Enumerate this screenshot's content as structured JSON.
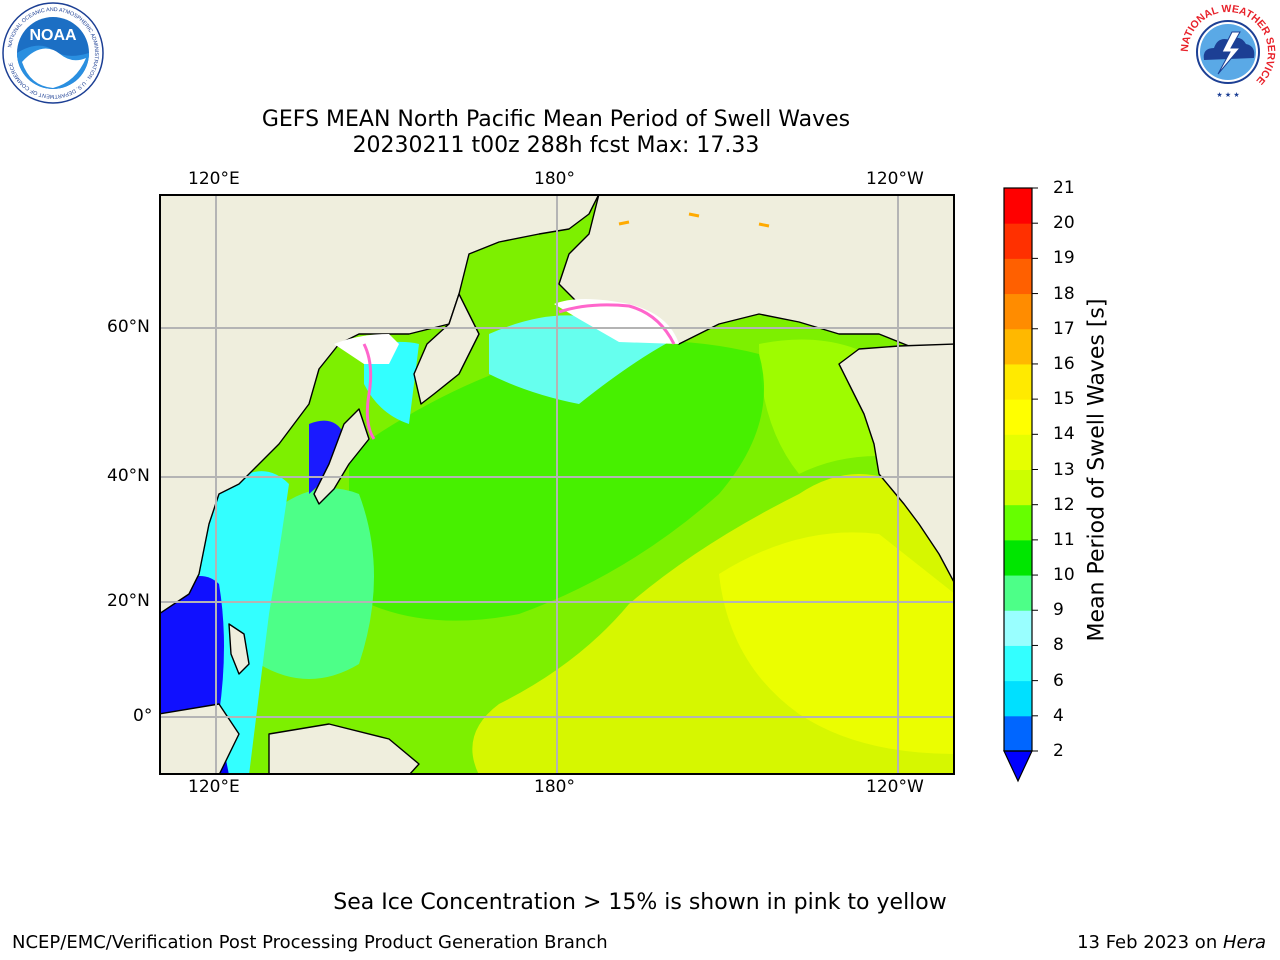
{
  "logos": {
    "noaa": {
      "name": "NOAA",
      "ring_text": "NATIONAL OCEANIC AND ATMOSPHERIC ADMINISTRATION · U.S. DEPARTMENT OF COMMERCE"
    },
    "nws": {
      "ring_text": "NATIONAL WEATHER SERVICE"
    }
  },
  "title": {
    "line1": "GEFS MEAN North Pacific Mean Period of Swell Waves",
    "line2": "20230211 t00z 288h fcst   Max: 17.33"
  },
  "map": {
    "top_lon_labels": [
      "120°E",
      "180°",
      "120°W"
    ],
    "bottom_lon_labels": [
      "120°E",
      "180°",
      "120°W"
    ],
    "lat_labels": [
      "60°N",
      "40°N",
      "20°N",
      "0°"
    ],
    "colors": {
      "land": "#efeedd",
      "ocean_base": "#7df000",
      "gridline": "#b4b4b4",
      "coast": "#000000",
      "ice_edge": "#ff66cc"
    }
  },
  "colorbar": {
    "label": "Mean Period of Swell Waves [s]",
    "levels": [
      "2",
      "4",
      "6",
      "8",
      "9",
      "10",
      "11",
      "12",
      "13",
      "14",
      "15",
      "16",
      "17",
      "18",
      "19",
      "20",
      "21"
    ],
    "colors": [
      "#0066ff",
      "#00e0ff",
      "#33ffff",
      "#99ffff",
      "#4dff88",
      "#00e600",
      "#66ff00",
      "#ccff00",
      "#e6ff00",
      "#ffff00",
      "#ffea00",
      "#ffb800",
      "#ff8c00",
      "#ff6000",
      "#ff3000",
      "#ff0000"
    ],
    "under_color": "#0000ff"
  },
  "footer": {
    "note": "Sea Ice Concentration > 15% is shown in pink to yellow",
    "credit": "NCEP/EMC/Verification Post Processing Product Generation Branch",
    "date": "13 Feb 2023 on ",
    "host": "Hera"
  }
}
